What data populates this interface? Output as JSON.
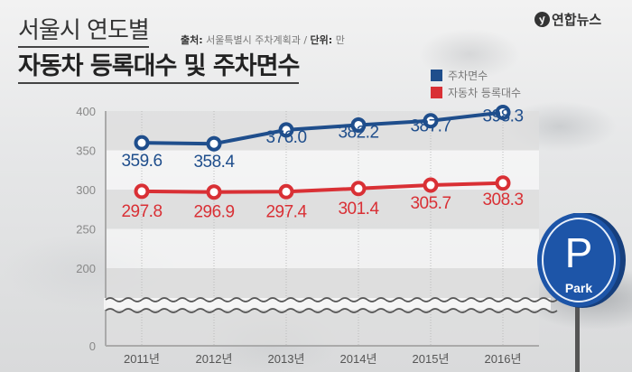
{
  "header": {
    "title_line1": "서울시 연도별",
    "title_line2": "자동차 등록대수 및 주차면수",
    "source_label": "출처:",
    "source_value": "서울특별시 주차계획과",
    "unit_label": "단위:",
    "unit_value": "만",
    "logo_text": "연합뉴스"
  },
  "legend": [
    {
      "label": "주차면수",
      "color": "#1f4e8c"
    },
    {
      "label": "자동차 등록대수",
      "color": "#d93035"
    }
  ],
  "sign": {
    "letter": "P",
    "text": "Park"
  },
  "chart_data": {
    "type": "line",
    "title": "서울시 연도별 자동차 등록대수 및 주차면수",
    "xlabel": "",
    "ylabel": "",
    "unit": "만",
    "categories": [
      "2011년",
      "2012년",
      "2013년",
      "2014년",
      "2015년",
      "2016년"
    ],
    "series": [
      {
        "name": "주차면수",
        "color": "#1f4e8c",
        "values": [
          359.6,
          358.4,
          376.0,
          382.2,
          387.7,
          398.3
        ],
        "labels": [
          "359.6",
          "358.4",
          "376.0",
          "382.2",
          "387.7",
          "398.3"
        ]
      },
      {
        "name": "자동차 등록대수",
        "color": "#d93035",
        "values": [
          297.8,
          296.9,
          297.4,
          301.4,
          305.7,
          308.3
        ],
        "labels": [
          "297.8",
          "296.9",
          "297.4",
          "301.4",
          "305.7",
          "308.3"
        ]
      }
    ],
    "yticks": [
      "400",
      "350",
      "300",
      "250",
      "200",
      "0"
    ],
    "ylim": [
      0,
      400
    ],
    "axis_break": true,
    "grid": true,
    "legend_position": "top-right"
  }
}
